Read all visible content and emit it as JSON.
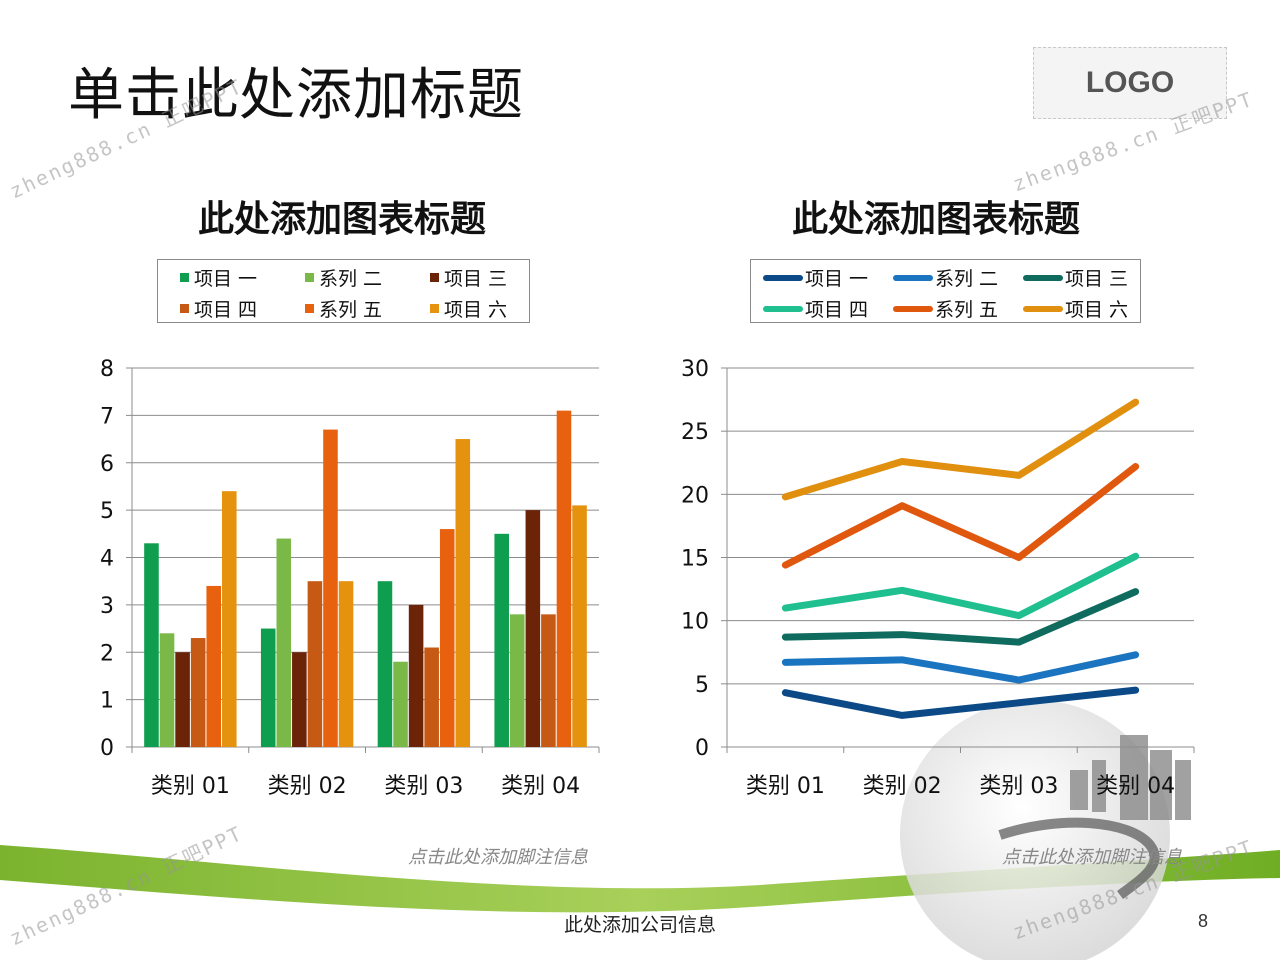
{
  "slide": {
    "title": "单击此处添加标题",
    "logo": "LOGO",
    "company_info": "此处添加公司信息",
    "page_number": "8",
    "watermark": "zheng888.cn 正吧PPT"
  },
  "colors": {
    "accent_green": "#8cc63f",
    "accent_dark_green": "#5fa31a"
  },
  "chart_data": [
    {
      "type": "bar",
      "title": "此处添加图表标题",
      "categories": [
        "类别 01",
        "类别 02",
        "类别 03",
        "类别 04"
      ],
      "series": [
        {
          "name": "项目 一",
          "color": "#0f9e4f",
          "values": [
            4.3,
            2.5,
            3.5,
            4.5
          ]
        },
        {
          "name": "系列 二",
          "color": "#7ab848",
          "values": [
            2.4,
            4.4,
            1.8,
            2.8
          ]
        },
        {
          "name": "项目 三",
          "color": "#6b2408",
          "values": [
            2.0,
            2.0,
            3.0,
            5.0
          ]
        },
        {
          "name": "项目 四",
          "color": "#c65913",
          "values": [
            2.3,
            3.5,
            2.1,
            2.8
          ]
        },
        {
          "name": "系列 五",
          "color": "#e8610e",
          "values": [
            3.4,
            6.7,
            4.6,
            7.1
          ]
        },
        {
          "name": "项目 六",
          "color": "#e5920e",
          "values": [
            5.4,
            3.5,
            6.5,
            5.1
          ]
        }
      ],
      "ylim": [
        0,
        8
      ],
      "yticks": [
        0,
        1,
        2,
        3,
        4,
        5,
        6,
        7,
        8
      ],
      "grid": true,
      "legend": "top",
      "footnote": "点击此处添加脚注信息"
    },
    {
      "type": "line",
      "title": "此处添加图表标题",
      "categories": [
        "类别 01",
        "类别 02",
        "类别 03",
        "类别 04"
      ],
      "series": [
        {
          "name": "项目 一",
          "color": "#0b4a87",
          "values": [
            4.3,
            2.5,
            3.5,
            4.5
          ]
        },
        {
          "name": "系列 二",
          "color": "#1b74bf",
          "values": [
            6.7,
            6.9,
            5.3,
            7.3
          ]
        },
        {
          "name": "项目 三",
          "color": "#0f6b5e",
          "values": [
            8.7,
            8.9,
            8.3,
            12.3
          ]
        },
        {
          "name": "项目 四",
          "color": "#1fbf8f",
          "values": [
            11.0,
            12.4,
            10.4,
            15.1
          ]
        },
        {
          "name": "系列 五",
          "color": "#e0570e",
          "values": [
            14.4,
            19.1,
            15.0,
            22.2
          ]
        },
        {
          "name": "项目 六",
          "color": "#e08f0e",
          "values": [
            19.8,
            22.6,
            21.5,
            27.3
          ]
        }
      ],
      "ylim": [
        0,
        30
      ],
      "yticks": [
        0,
        5,
        10,
        15,
        20,
        25,
        30
      ],
      "grid": true,
      "legend": "top",
      "footnote": "点击此处添加脚注信息"
    }
  ]
}
